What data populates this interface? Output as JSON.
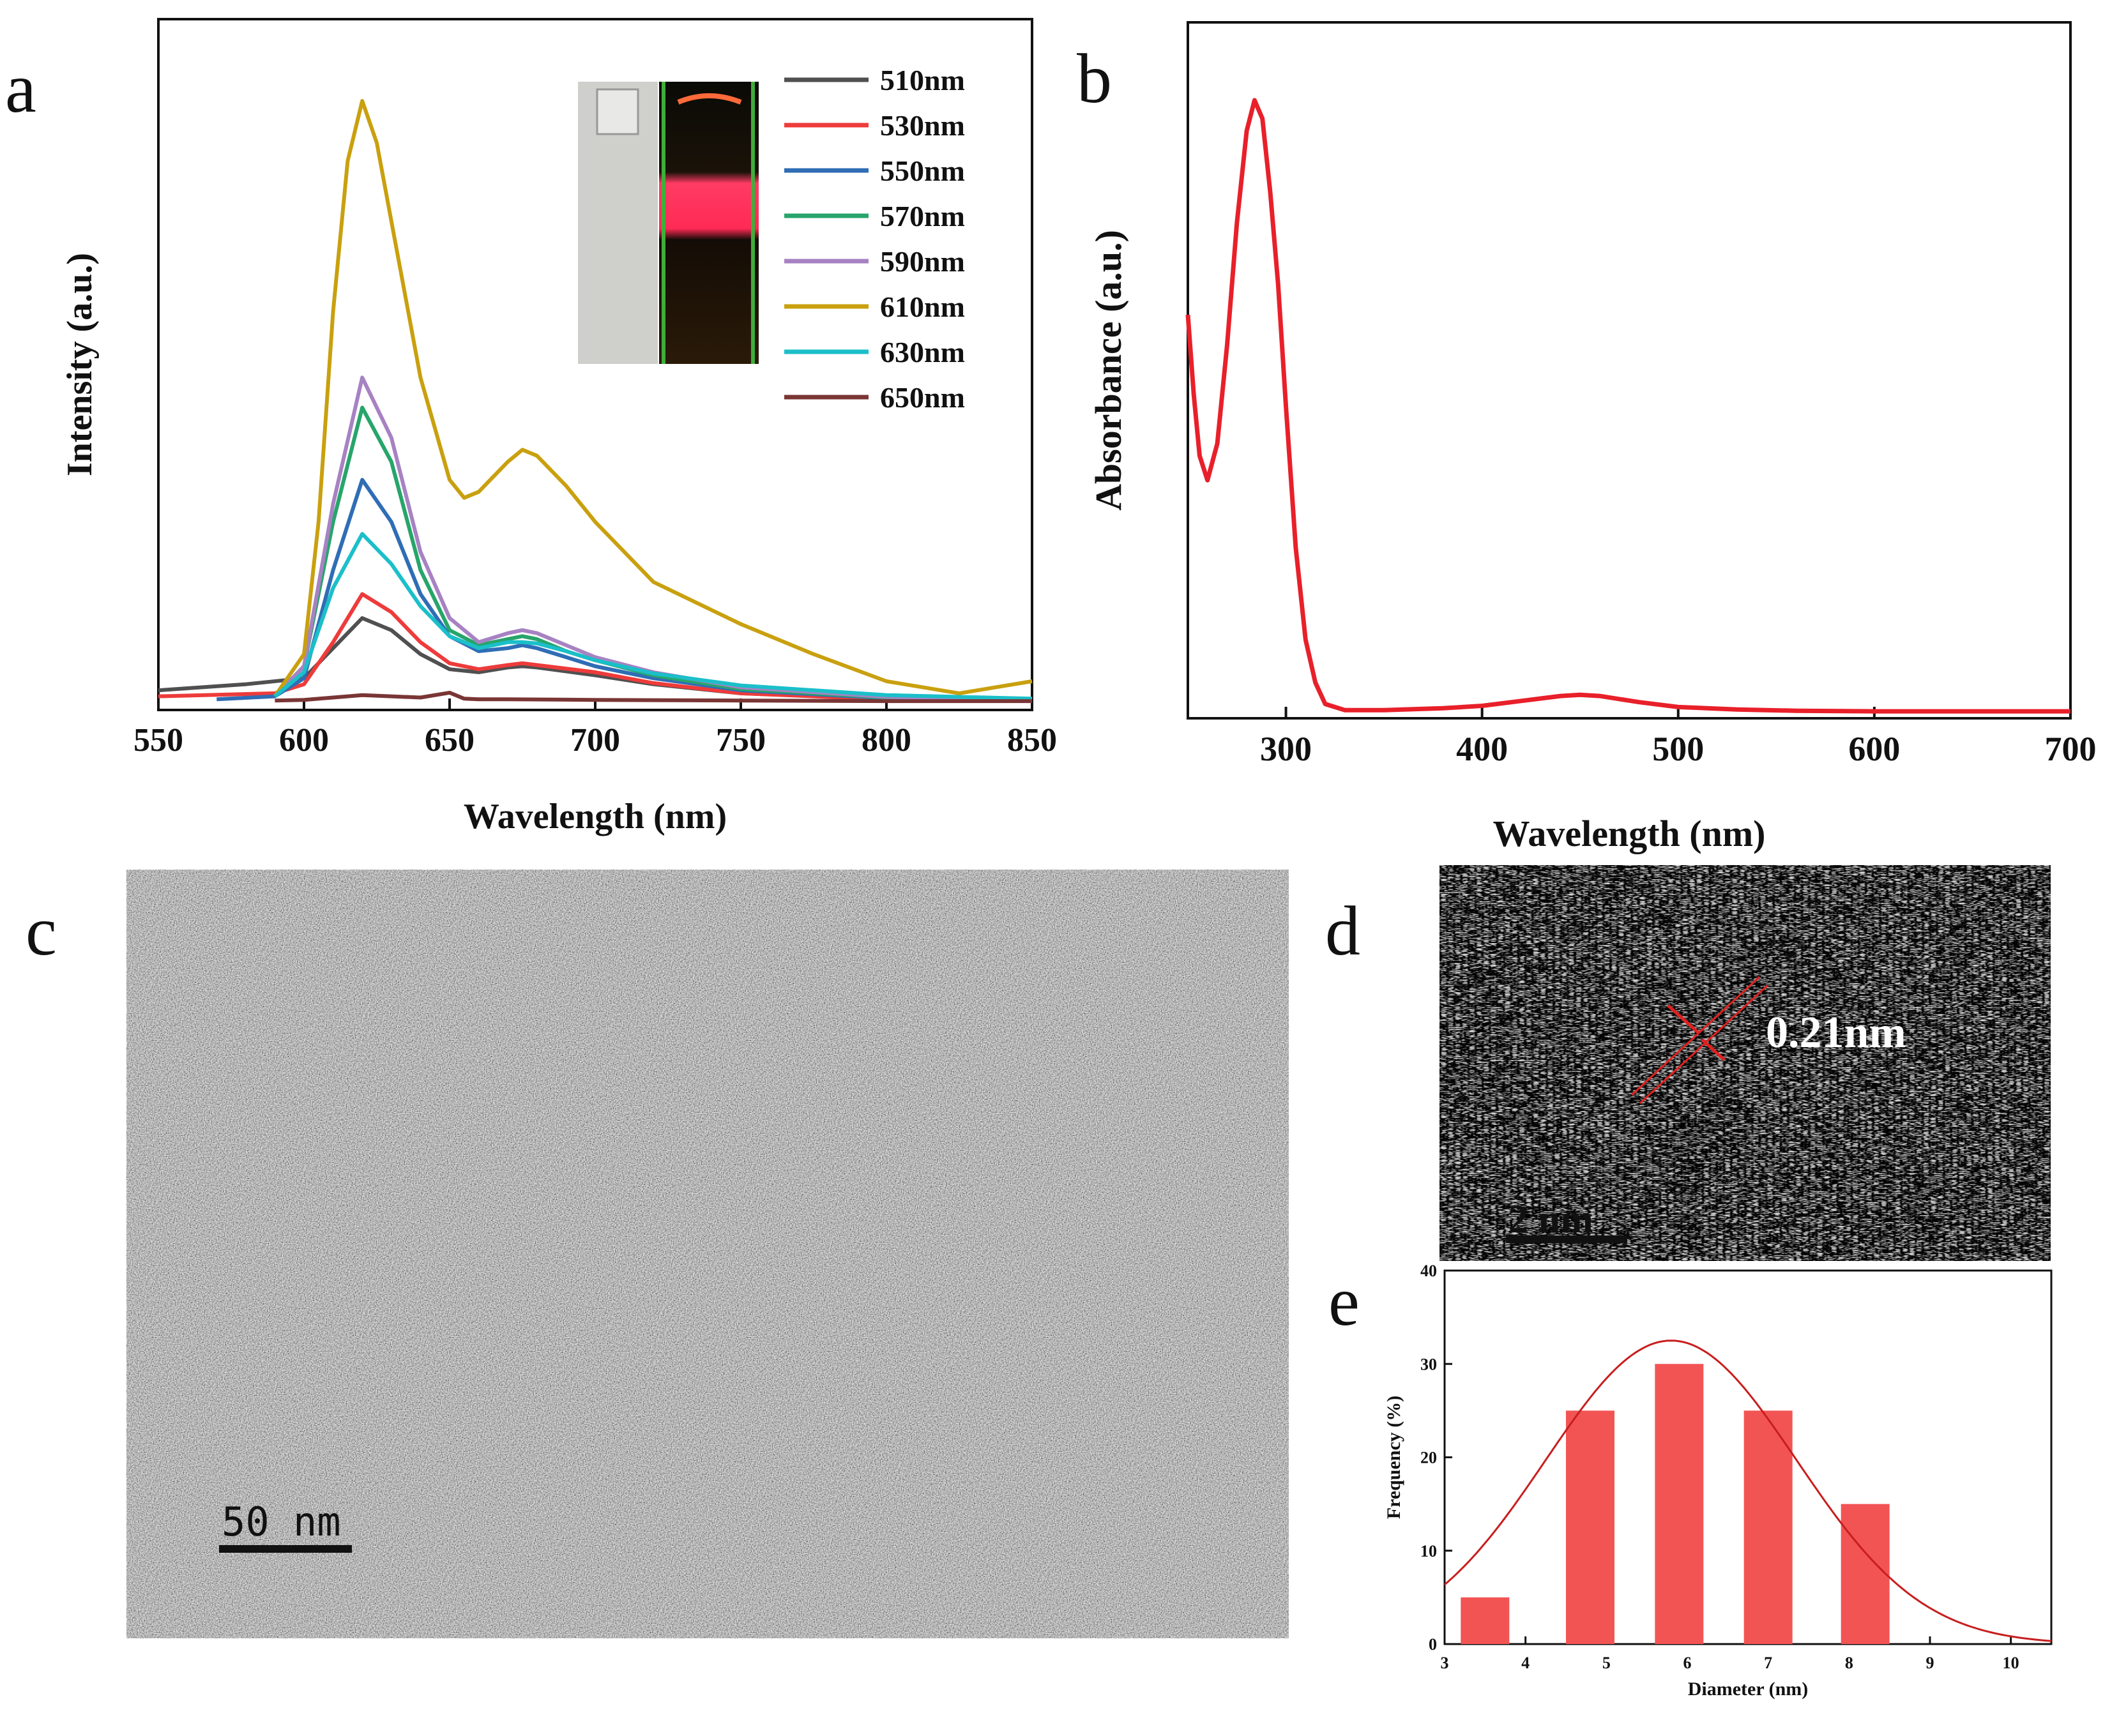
{
  "panels": {
    "a": {
      "letter": "a"
    },
    "b": {
      "letter": "b"
    },
    "c": {
      "letter": "c",
      "scale_bar": "50 nm"
    },
    "d": {
      "letter": "d",
      "scale_bar": "2 nm",
      "lattice_spacing": "0.21nm"
    },
    "e": {
      "letter": "e"
    }
  },
  "chart_data": [
    {
      "id": "a",
      "type": "line",
      "title": "",
      "xlabel": "Wavelength (nm)",
      "ylabel": "Intensity (a.u.)",
      "xlim": [
        550,
        850
      ],
      "ylim": [
        0,
        1
      ],
      "xticks": [
        550,
        600,
        650,
        700,
        750,
        800,
        850
      ],
      "legend_position": "top-right",
      "inset": "photographs of cuvette under daylight and under excitation (red emission)",
      "series": [
        {
          "name": "510nm",
          "color": "#505050",
          "x": [
            550,
            580,
            600,
            610,
            620,
            630,
            640,
            650,
            660,
            670,
            675,
            680,
            700,
            720,
            750,
            800,
            850
          ],
          "y": [
            0.02,
            0.03,
            0.04,
            0.09,
            0.14,
            0.12,
            0.08,
            0.055,
            0.05,
            0.058,
            0.06,
            0.058,
            0.045,
            0.03,
            0.015,
            0.006,
            0.003
          ]
        },
        {
          "name": "530nm",
          "color": "#ee3b3b",
          "x": [
            550,
            590,
            600,
            610,
            620,
            630,
            640,
            650,
            660,
            670,
            675,
            680,
            700,
            720,
            750,
            800,
            850
          ],
          "y": [
            0.01,
            0.015,
            0.03,
            0.1,
            0.18,
            0.15,
            0.1,
            0.065,
            0.055,
            0.062,
            0.065,
            0.062,
            0.05,
            0.032,
            0.015,
            0.005,
            0.002
          ]
        },
        {
          "name": "550nm",
          "color": "#2f6db5",
          "x": [
            570,
            590,
            600,
            610,
            620,
            630,
            640,
            650,
            660,
            670,
            675,
            680,
            690,
            700,
            720,
            750,
            800,
            850
          ],
          "y": [
            0.005,
            0.01,
            0.04,
            0.22,
            0.37,
            0.3,
            0.18,
            0.11,
            0.085,
            0.09,
            0.095,
            0.09,
            0.075,
            0.06,
            0.04,
            0.02,
            0.007,
            0.003
          ]
        },
        {
          "name": "570nm",
          "color": "#27a56b",
          "x": [
            590,
            600,
            610,
            620,
            630,
            640,
            650,
            660,
            670,
            675,
            680,
            690,
            700,
            720,
            750,
            800,
            850
          ],
          "y": [
            0.01,
            0.06,
            0.3,
            0.49,
            0.4,
            0.22,
            0.12,
            0.095,
            0.105,
            0.11,
            0.105,
            0.085,
            0.07,
            0.045,
            0.022,
            0.008,
            0.004
          ]
        },
        {
          "name": "590nm",
          "color": "#a782c3",
          "x": [
            590,
            600,
            610,
            620,
            630,
            640,
            650,
            660,
            670,
            675,
            680,
            690,
            700,
            720,
            750,
            800,
            850
          ],
          "y": [
            0.01,
            0.06,
            0.33,
            0.54,
            0.44,
            0.25,
            0.14,
            0.1,
            0.115,
            0.12,
            0.115,
            0.095,
            0.075,
            0.05,
            0.025,
            0.009,
            0.004
          ]
        },
        {
          "name": "610nm",
          "color": "#c9a00e",
          "x": [
            590,
            600,
            605,
            610,
            615,
            620,
            625,
            630,
            640,
            650,
            655,
            660,
            670,
            675,
            680,
            690,
            700,
            720,
            750,
            775,
            800,
            825,
            850
          ],
          "y": [
            0.01,
            0.08,
            0.3,
            0.65,
            0.9,
            1.0,
            0.93,
            0.8,
            0.54,
            0.37,
            0.34,
            0.35,
            0.4,
            0.42,
            0.41,
            0.36,
            0.3,
            0.2,
            0.13,
            0.08,
            0.035,
            0.015,
            0.035
          ]
        },
        {
          "name": "630nm",
          "color": "#1bbfc9",
          "x": [
            590,
            600,
            610,
            620,
            630,
            640,
            650,
            660,
            670,
            675,
            680,
            690,
            700,
            720,
            750,
            800,
            850
          ],
          "y": [
            0.01,
            0.05,
            0.19,
            0.28,
            0.23,
            0.16,
            0.11,
            0.09,
            0.1,
            0.1,
            0.098,
            0.085,
            0.07,
            0.048,
            0.028,
            0.012,
            0.006
          ]
        },
        {
          "name": "650nm",
          "color": "#7a3535",
          "x": [
            590,
            600,
            610,
            620,
            630,
            640,
            650,
            655,
            660,
            670,
            700,
            750,
            800,
            850
          ],
          "y": [
            0.003,
            0.004,
            0.008,
            0.012,
            0.01,
            0.008,
            0.016,
            0.006,
            0.005,
            0.005,
            0.004,
            0.003,
            0.002,
            0.002
          ]
        }
      ]
    },
    {
      "id": "b",
      "type": "line",
      "title": "",
      "xlabel": "Wavelength (nm)",
      "ylabel": "Absorbance (a.u.)",
      "xlim": [
        250,
        700
      ],
      "ylim": [
        0,
        1
      ],
      "xticks": [
        300,
        400,
        500,
        600,
        700
      ],
      "series": [
        {
          "name": "absorbance",
          "color": "#e8202a",
          "x": [
            250,
            253,
            256,
            260,
            265,
            270,
            275,
            280,
            284,
            288,
            292,
            296,
            300,
            305,
            310,
            315,
            320,
            330,
            350,
            380,
            400,
            420,
            440,
            450,
            460,
            480,
            500,
            530,
            560,
            600,
            650,
            700
          ],
          "y": [
            0.65,
            0.52,
            0.42,
            0.38,
            0.44,
            0.6,
            0.8,
            0.95,
            1.0,
            0.97,
            0.85,
            0.7,
            0.5,
            0.27,
            0.12,
            0.05,
            0.015,
            0.005,
            0.005,
            0.008,
            0.012,
            0.02,
            0.028,
            0.03,
            0.028,
            0.018,
            0.01,
            0.006,
            0.004,
            0.003,
            0.003,
            0.003
          ]
        }
      ]
    },
    {
      "id": "e",
      "type": "bar",
      "title": "",
      "xlabel": "Diameter (nm)",
      "ylabel": "Frequency (%)",
      "xlim": [
        3,
        10.5
      ],
      "ylim": [
        0,
        40
      ],
      "xticks": [
        3,
        4,
        5,
        6,
        7,
        8,
        9,
        10
      ],
      "yticks": [
        0,
        10,
        20,
        30,
        40
      ],
      "bar_width": 0.6,
      "x": [
        3.5,
        4.8,
        5.9,
        7.0,
        8.2
      ],
      "values": [
        5,
        25,
        30,
        25,
        15
      ],
      "bar_color": "#f25454",
      "fit": {
        "type": "gaussian",
        "mean": 5.8,
        "sigma": 1.55,
        "amplitude": 32.5,
        "color": "#c81e1e"
      }
    }
  ]
}
